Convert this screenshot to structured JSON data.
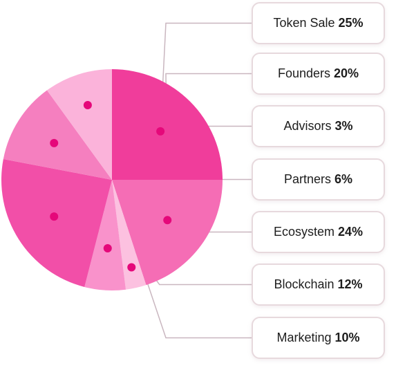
{
  "chart_data": {
    "type": "pie",
    "slices": [
      {
        "label": "Token Sale",
        "value_text": "25%",
        "value": 25,
        "color": "#f03d9b"
      },
      {
        "label": "Founders",
        "value_text": "20%",
        "value": 20,
        "color": "#f56db5"
      },
      {
        "label": "Advisors",
        "value_text": "3%",
        "value": 3,
        "color": "#fcc1e0"
      },
      {
        "label": "Partners",
        "value_text": "6%",
        "value": 6,
        "color": "#f992cb"
      },
      {
        "label": "Ecosystem",
        "value_text": "24%",
        "value": 24,
        "color": "#f24fa8"
      },
      {
        "label": "Blockchain",
        "value_text": "12%",
        "value": 12,
        "color": "#f57fbf"
      },
      {
        "label": "Marketing",
        "value_text": "10%",
        "value": 10,
        "color": "#fbb3da"
      }
    ],
    "legend_placement": "right",
    "connector_color": "#c9b6bf",
    "marker_color": "#e5087a"
  }
}
